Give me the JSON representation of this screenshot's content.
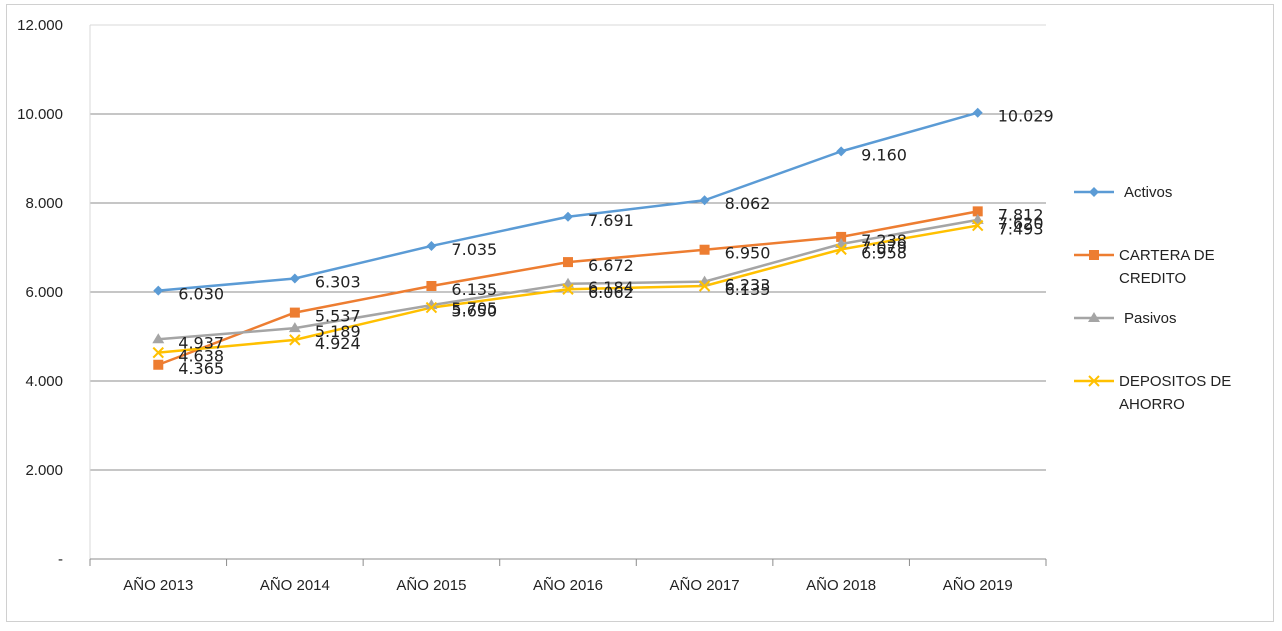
{
  "chart_data": {
    "type": "line",
    "categories": [
      "AÑO 2013",
      "AÑO 2014",
      "AÑO 2015",
      "AÑO 2016",
      "AÑO 2017",
      "AÑO 2018",
      "AÑO 2019"
    ],
    "ylim": [
      0,
      12000
    ],
    "yticks": [
      {
        "value": 0,
        "label": "-"
      },
      {
        "value": 2000,
        "label": "2.000"
      },
      {
        "value": 4000,
        "label": "4.000"
      },
      {
        "value": 6000,
        "label": "6.000"
      },
      {
        "value": 8000,
        "label": "8.000"
      },
      {
        "value": 10000,
        "label": "10.000"
      },
      {
        "value": 12000,
        "label": "12.000"
      }
    ],
    "grid": true,
    "legend_position": "right",
    "series": [
      {
        "name": "Activos",
        "legend_lines": [
          "Activos"
        ],
        "color": "#5b9bd5",
        "marker": "diamond",
        "values": [
          6030,
          6303,
          7035,
          7691,
          8062,
          9160,
          10029
        ],
        "labels": [
          "6.030",
          "6.303",
          "7.035",
          "7.691",
          "8.062",
          "9.160",
          "10.029"
        ]
      },
      {
        "name": "CARTERA DE CREDITO",
        "legend_lines": [
          "CARTERA DE",
          "CREDITO"
        ],
        "color": "#ed7d31",
        "marker": "square",
        "values": [
          4365,
          5537,
          6135,
          6672,
          6950,
          7238,
          7812
        ],
        "labels": [
          "4.365",
          "5.537",
          "6.135",
          "6.672",
          "6.950",
          "7.238",
          "7.812"
        ]
      },
      {
        "name": "Pasivos",
        "legend_lines": [
          "Pasivos"
        ],
        "color": "#a5a5a5",
        "marker": "triangle",
        "values": [
          4937,
          5189,
          5705,
          6184,
          6233,
          7079,
          7620
        ],
        "labels": [
          "4.937",
          "5.189",
          "5.705",
          "6.184",
          "6.233",
          "7.079",
          "7.620"
        ]
      },
      {
        "name": "DEPOSITOS DE AHORRO",
        "legend_lines": [
          "DEPOSITOS DE",
          "AHORRO"
        ],
        "color": "#ffc000",
        "marker": "x",
        "values": [
          4638,
          4924,
          5650,
          6062,
          6135,
          6958,
          7493
        ],
        "labels": [
          "4.638",
          "4.924",
          "5.650",
          "6.062",
          "6.135",
          "6.958",
          "7.493"
        ]
      }
    ]
  }
}
